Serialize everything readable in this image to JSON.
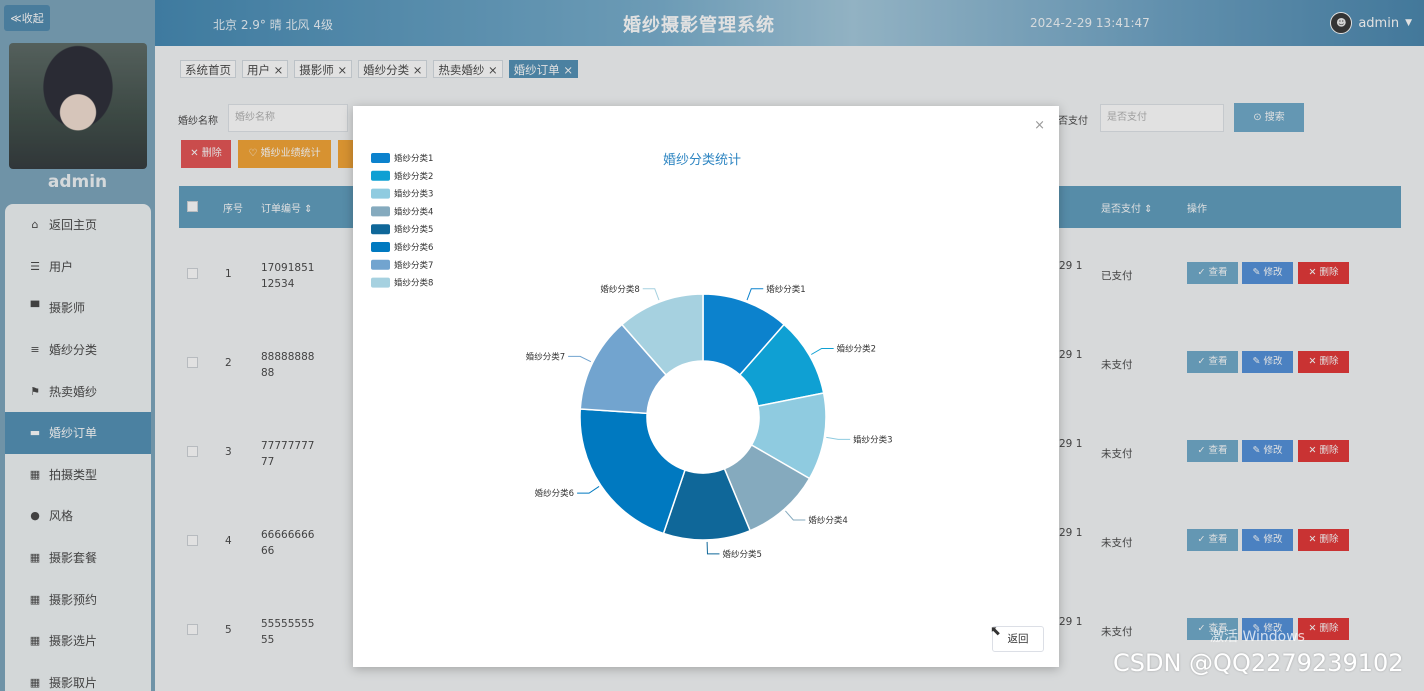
{
  "header": {
    "weather": "北京  2.9°  晴  北风  4级",
    "title": "婚纱摄影管理系统",
    "datetime": "2024-2-29 13:41:47",
    "username": "admin",
    "user_icon": "user-avatar-icon"
  },
  "sidebar": {
    "collapse_label": "≪收起",
    "profile_name": "admin",
    "items": [
      {
        "label": "返回主页",
        "icon": "⌂"
      },
      {
        "label": "用户",
        "icon": "☰"
      },
      {
        "label": "摄影师",
        "icon": "▀"
      },
      {
        "label": "婚纱分类",
        "icon": "≡"
      },
      {
        "label": "热卖婚纱",
        "icon": "⚑"
      },
      {
        "label": "婚纱订单",
        "icon": "▬"
      },
      {
        "label": "拍摄类型",
        "icon": "▦"
      },
      {
        "label": "风格",
        "icon": "●"
      },
      {
        "label": "摄影套餐",
        "icon": "▦"
      },
      {
        "label": "摄影预约",
        "icon": "▦"
      },
      {
        "label": "摄影选片",
        "icon": "▦"
      },
      {
        "label": "摄影取片",
        "icon": "▦"
      }
    ],
    "active_index": 5
  },
  "tabs": [
    "系统首页",
    "用户 ×",
    "摄影师 ×",
    "婚纱分类 ×",
    "热卖婚纱 ×",
    "婚纱订单 ×"
  ],
  "toolbar": {
    "search_label": "婚纱名称",
    "search_placeholder": "婚纱名称",
    "pay_label": "否支付",
    "pay_placeholder": "是否支付",
    "search_button": "⊙ 搜索",
    "delete_button": "✕ 删除",
    "perf_button": "♡ 婚纱业绩统计"
  },
  "table": {
    "headers": [
      "序号",
      "订单编号 ⇕",
      "是否支付 ⇕",
      "操作"
    ],
    "rows": [
      {
        "index": "1",
        "order": "1709185112534",
        "date": "29 1",
        "paid": "已支付"
      },
      {
        "index": "2",
        "order": "8888888888",
        "date": "29 1",
        "paid": "未支付"
      },
      {
        "index": "3",
        "order": "7777777777",
        "date": "29 1",
        "paid": "未支付"
      },
      {
        "index": "4",
        "order": "6666666666",
        "date": "29 1",
        "paid": "未支付"
      },
      {
        "index": "5",
        "order": "5555555555",
        "date": "29 1",
        "paid": "未支付"
      }
    ],
    "actions": {
      "view": "✓ 查看",
      "edit": "✎ 修改",
      "remove": "✕ 删除"
    }
  },
  "modal": {
    "close": "×",
    "return_button": "返回"
  },
  "chart_data": {
    "type": "pie",
    "donut": true,
    "title": "婚纱分类统计",
    "legend_position": "top-left",
    "categories": [
      "婚纱分类1",
      "婚纱分类2",
      "婚纱分类3",
      "婚纱分类4",
      "婚纱分类5",
      "婚纱分类6",
      "婚纱分类7",
      "婚纱分类8"
    ],
    "values": [
      11,
      10,
      11,
      10,
      11,
      20,
      12,
      11
    ],
    "colors": [
      "#0c82cd",
      "#0fa0d3",
      "#8fcbe0",
      "#85aabe",
      "#0f6799",
      "#0079c0",
      "#72a4cf",
      "#a6d1e0"
    ]
  },
  "watermarks": {
    "windows": "激活 Windows",
    "csdn": "CSDN @QQ2279239102"
  }
}
